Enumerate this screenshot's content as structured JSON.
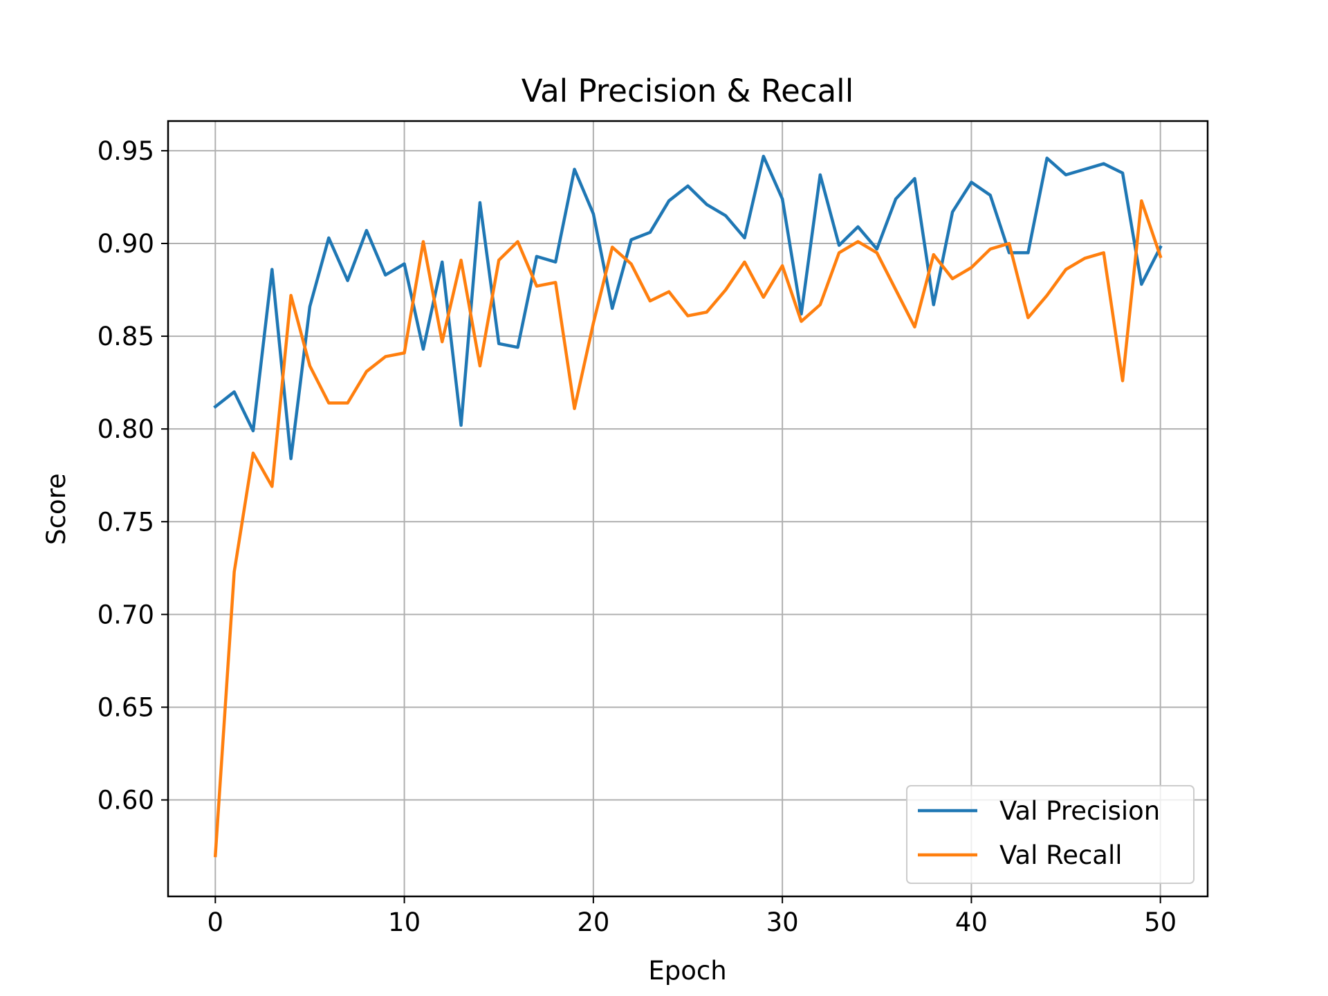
{
  "chart_data": {
    "type": "line",
    "title": "Val Precision & Recall",
    "xlabel": "Epoch",
    "ylabel": "Score",
    "xlim": [
      -2.5,
      52.5
    ],
    "ylim": [
      0.548,
      0.966
    ],
    "xticks": [
      0,
      10,
      20,
      30,
      40,
      50
    ],
    "xtick_labels": [
      "0",
      "10",
      "20",
      "30",
      "40",
      "50"
    ],
    "yticks": [
      0.6,
      0.65,
      0.7,
      0.75,
      0.8,
      0.85,
      0.9,
      0.95
    ],
    "ytick_labels": [
      "0.60",
      "0.65",
      "0.70",
      "0.75",
      "0.80",
      "0.85",
      "0.90",
      "0.95"
    ],
    "grid": true,
    "legend_position": "lower-right",
    "x": [
      0,
      1,
      2,
      3,
      4,
      5,
      6,
      7,
      8,
      9,
      10,
      11,
      12,
      13,
      14,
      15,
      16,
      17,
      18,
      19,
      20,
      21,
      22,
      23,
      24,
      25,
      26,
      27,
      28,
      29,
      30,
      31,
      32,
      33,
      34,
      35,
      36,
      37,
      38,
      39,
      40,
      41,
      42,
      43,
      44,
      45,
      46,
      47,
      48,
      49,
      50
    ],
    "series": [
      {
        "name": "Val Precision",
        "color": "#1f77b4",
        "values": [
          0.812,
          0.82,
          0.799,
          0.886,
          0.784,
          0.866,
          0.903,
          0.88,
          0.907,
          0.883,
          0.889,
          0.843,
          0.89,
          0.802,
          0.922,
          0.846,
          0.844,
          0.893,
          0.89,
          0.94,
          0.916,
          0.865,
          0.902,
          0.906,
          0.923,
          0.931,
          0.921,
          0.915,
          0.903,
          0.947,
          0.924,
          0.862,
          0.937,
          0.899,
          0.909,
          0.897,
          0.924,
          0.935,
          0.867,
          0.917,
          0.933,
          0.926,
          0.895,
          0.895,
          0.946,
          0.937,
          0.94,
          0.943,
          0.938,
          0.878,
          0.898
        ]
      },
      {
        "name": "Val Recall",
        "color": "#ff7f0e",
        "values": [
          0.57,
          0.723,
          0.787,
          0.769,
          0.872,
          0.834,
          0.814,
          0.814,
          0.831,
          0.839,
          0.841,
          0.901,
          0.847,
          0.891,
          0.834,
          0.891,
          0.901,
          0.877,
          0.879,
          0.811,
          0.857,
          0.898,
          0.889,
          0.869,
          0.874,
          0.861,
          0.863,
          0.875,
          0.89,
          0.871,
          0.888,
          0.858,
          0.867,
          0.895,
          0.901,
          0.895,
          0.875,
          0.855,
          0.894,
          0.881,
          0.887,
          0.897,
          0.9,
          0.86,
          0.872,
          0.886,
          0.892,
          0.895,
          0.826,
          0.923,
          0.893
        ]
      }
    ]
  }
}
